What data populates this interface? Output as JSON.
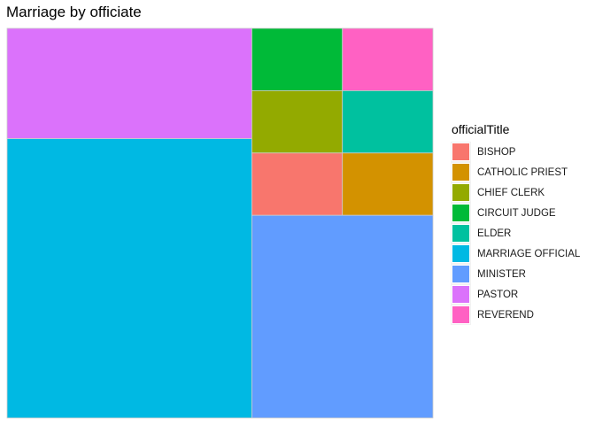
{
  "chart_data": {
    "type": "treemap",
    "title": "Marriage by officiate",
    "legend": {
      "title": "officialTitle",
      "position": "right"
    },
    "categories": [
      "BISHOP",
      "CATHOLIC PRIEST",
      "CHIEF CLERK",
      "CIRCUIT JUDGE",
      "ELDER",
      "MARRIAGE OFFICIAL",
      "MINISTER",
      "PASTOR",
      "REVEREND"
    ],
    "values": [
      4.6,
      4.6,
      4.6,
      4.6,
      4.6,
      55.7,
      29.9,
      22.0,
      4.6
    ],
    "colors": [
      "#F8766D",
      "#D39200",
      "#93AA00",
      "#00BA38",
      "#00C19F",
      "#00B9E3",
      "#619CFF",
      "#DB72FB",
      "#FF61C3"
    ]
  }
}
